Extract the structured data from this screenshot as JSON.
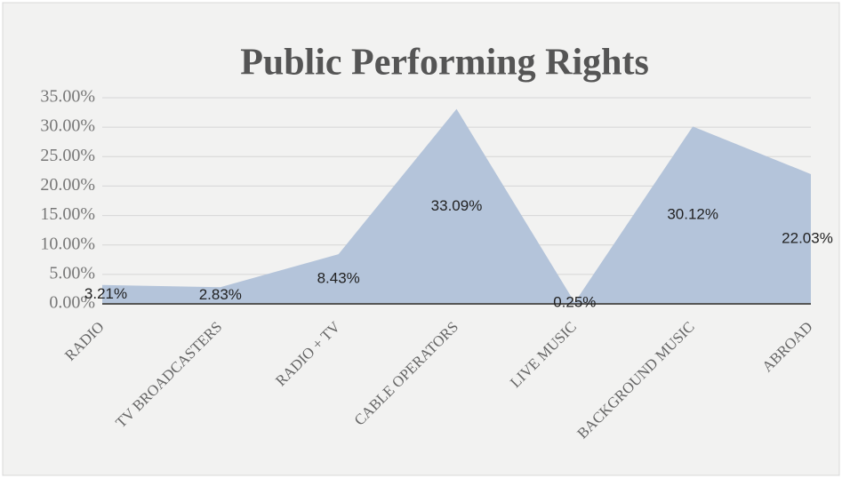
{
  "chart_data": {
    "type": "area",
    "title": "Public Performing Rights",
    "categories": [
      "RADIO",
      "TV BROADCASTERS",
      "RADIO + TV",
      "CABLE OPERATORS",
      "LIVE MUSIC",
      "BACKGROUND MUSIC",
      "ABROAD"
    ],
    "values": [
      3.21,
      2.83,
      8.43,
      33.09,
      0.25,
      30.12,
      22.03
    ],
    "value_labels": [
      "3.21%",
      "2.83%",
      "8.43%",
      "33.09%",
      "0.25%",
      "30.12%",
      "22.03%"
    ],
    "color": "#b4c4da",
    "ylim": [
      0,
      35
    ],
    "yticks": [
      {
        "value": 0,
        "label": "0.00%"
      },
      {
        "value": 5,
        "label": "5.00%"
      },
      {
        "value": 10,
        "label": "10.00%"
      },
      {
        "value": 15,
        "label": "15.00%"
      },
      {
        "value": 20,
        "label": "20.00%"
      },
      {
        "value": 25,
        "label": "25.00%"
      },
      {
        "value": 30,
        "label": "30.00%"
      },
      {
        "value": 35,
        "label": "35.00%"
      }
    ],
    "grid": true
  }
}
